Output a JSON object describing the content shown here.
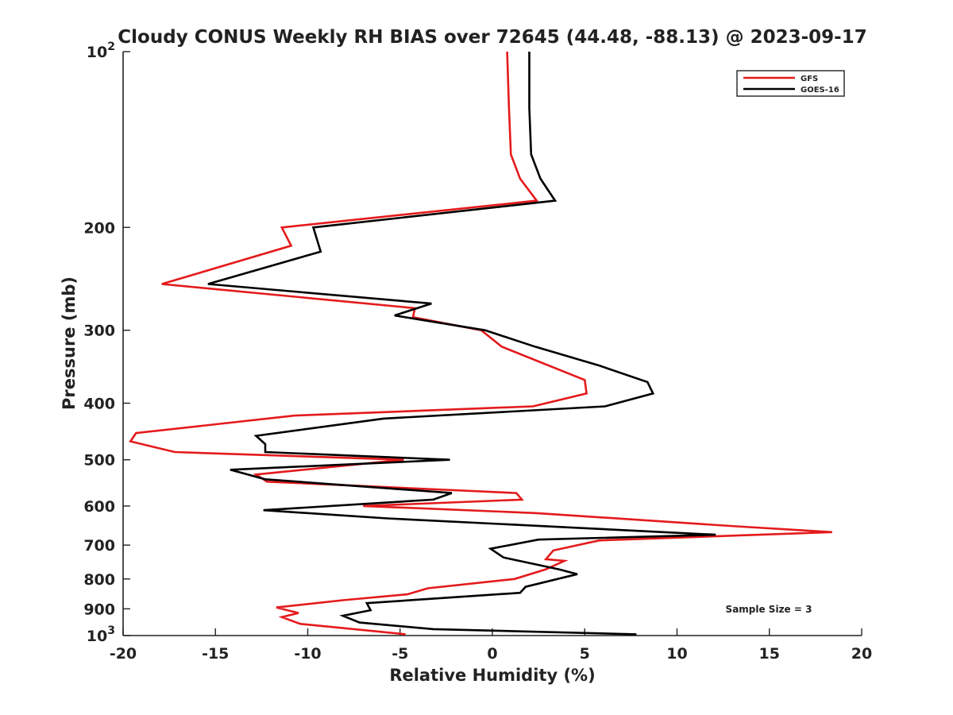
{
  "chart_data": {
    "type": "line",
    "title": "Cloudy CONUS Weekly RH BIAS over 72645 (44.48, -88.13) @ 2023-09-17",
    "xlabel": "Relative Humidity (%)",
    "ylabel": "Pressure (mb)",
    "xlim": [
      -20,
      20
    ],
    "ylim": [
      100,
      1000
    ],
    "y_scale": "log",
    "y_reversed": true,
    "x_ticks": [
      "-20",
      "-15",
      "-10",
      "-5",
      "0",
      "5",
      "10",
      "15",
      "20"
    ],
    "y_ticks": [
      {
        "value": 100,
        "base": "10",
        "exp": "2"
      },
      {
        "value": 200,
        "label": "200"
      },
      {
        "value": 300,
        "label": "300"
      },
      {
        "value": 400,
        "label": "400"
      },
      {
        "value": 500,
        "label": "500"
      },
      {
        "value": 600,
        "label": "600"
      },
      {
        "value": 700,
        "label": "700"
      },
      {
        "value": 800,
        "label": "800"
      },
      {
        "value": 900,
        "label": "900"
      },
      {
        "value": 1000,
        "base": "10",
        "exp": "3"
      }
    ],
    "grid": false,
    "legend_position": "top-right",
    "annotation": "Sample Size = 3",
    "series": [
      {
        "name": "GFS",
        "color": "#e41a1c",
        "points": [
          [
            0.8,
            100
          ],
          [
            0.9,
            125
          ],
          [
            1.0,
            150
          ],
          [
            1.5,
            165
          ],
          [
            2.4,
            180
          ],
          [
            -11.4,
            200
          ],
          [
            -10.9,
            215
          ],
          [
            -17.9,
            250
          ],
          [
            -4.2,
            275
          ],
          [
            -4.3,
            285
          ],
          [
            -0.6,
            300
          ],
          [
            0.5,
            320
          ],
          [
            5.0,
            365
          ],
          [
            5.1,
            385
          ],
          [
            2.2,
            405
          ],
          [
            -10.7,
            420
          ],
          [
            -19.3,
            450
          ],
          [
            -19.6,
            465
          ],
          [
            -17.2,
            485
          ],
          [
            -4.8,
            500
          ],
          [
            -12.8,
            530
          ],
          [
            -12.2,
            545
          ],
          [
            1.3,
            570
          ],
          [
            1.6,
            585
          ],
          [
            -7.0,
            600
          ],
          [
            2.4,
            617
          ],
          [
            13.2,
            650
          ],
          [
            18.4,
            665
          ],
          [
            5.8,
            687
          ],
          [
            3.3,
            715
          ],
          [
            2.9,
            740
          ],
          [
            3.9,
            745
          ],
          [
            2.9,
            770
          ],
          [
            1.2,
            800
          ],
          [
            -3.5,
            830
          ],
          [
            -4.6,
            850
          ],
          [
            -8.1,
            870
          ],
          [
            -11.7,
            895
          ],
          [
            -10.5,
            915
          ],
          [
            -11.4,
            930
          ],
          [
            -10.4,
            955
          ],
          [
            -4.7,
            995
          ]
        ]
      },
      {
        "name": "GOES-16",
        "color": "#000000",
        "points": [
          [
            2.0,
            100
          ],
          [
            2.0,
            125
          ],
          [
            2.1,
            150
          ],
          [
            2.6,
            165
          ],
          [
            3.4,
            180
          ],
          [
            -9.7,
            200
          ],
          [
            -9.3,
            220
          ],
          [
            -15.4,
            250
          ],
          [
            -3.3,
            270
          ],
          [
            -5.3,
            283
          ],
          [
            -0.4,
            300
          ],
          [
            2.3,
            320
          ],
          [
            5.8,
            345
          ],
          [
            8.4,
            368
          ],
          [
            8.7,
            385
          ],
          [
            6.1,
            405
          ],
          [
            -5.9,
            425
          ],
          [
            -12.8,
            455
          ],
          [
            -12.3,
            470
          ],
          [
            -12.3,
            485
          ],
          [
            -2.3,
            500
          ],
          [
            -14.2,
            520
          ],
          [
            -12.3,
            540
          ],
          [
            -2.2,
            570
          ],
          [
            -3.2,
            585
          ],
          [
            -12.4,
            610
          ],
          [
            -5.7,
            630
          ],
          [
            7.2,
            660
          ],
          [
            12.1,
            672
          ],
          [
            2.5,
            685
          ],
          [
            -0.1,
            710
          ],
          [
            0.6,
            735
          ],
          [
            3.6,
            770
          ],
          [
            4.6,
            785
          ],
          [
            1.8,
            825
          ],
          [
            1.5,
            845
          ],
          [
            -6.8,
            880
          ],
          [
            -6.6,
            905
          ],
          [
            -8.1,
            925
          ],
          [
            -7.2,
            950
          ],
          [
            -3.2,
            975
          ],
          [
            7.8,
            995
          ]
        ]
      }
    ]
  }
}
